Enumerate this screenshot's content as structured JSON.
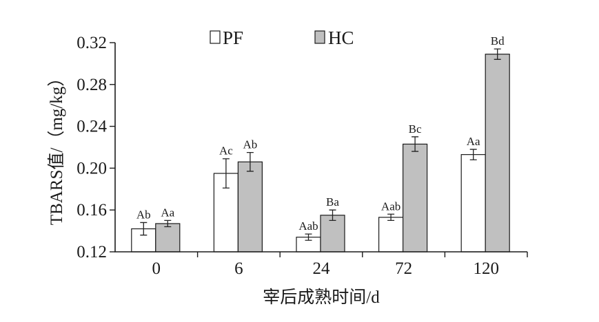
{
  "chart_data": {
    "type": "bar",
    "categories": [
      "0",
      "6",
      "24",
      "72",
      "120"
    ],
    "xlabel": "宰后成熟时间/d",
    "ylabel": "TBARS值/（mg/kg）",
    "ylim": [
      0.12,
      0.32
    ],
    "yticks": [
      "0.12",
      "0.16",
      "0.20",
      "0.24",
      "0.28",
      "0.32"
    ],
    "legend_placement": "top-center",
    "series": [
      {
        "name": "PF",
        "color": "#ffffff",
        "values": [
          0.142,
          0.195,
          0.134,
          0.153,
          0.213
        ],
        "errors": [
          0.006,
          0.014,
          0.003,
          0.003,
          0.005
        ],
        "labels": [
          "Ab",
          "Ac",
          "Aab",
          "Aab",
          "Aa"
        ]
      },
      {
        "name": "HC",
        "color": "#c0c0c0",
        "values": [
          0.147,
          0.206,
          0.155,
          0.223,
          0.309
        ],
        "errors": [
          0.003,
          0.009,
          0.005,
          0.007,
          0.005
        ],
        "labels": [
          "Aa",
          "Ab",
          "Ba",
          "Bc",
          "Bd"
        ]
      }
    ]
  }
}
